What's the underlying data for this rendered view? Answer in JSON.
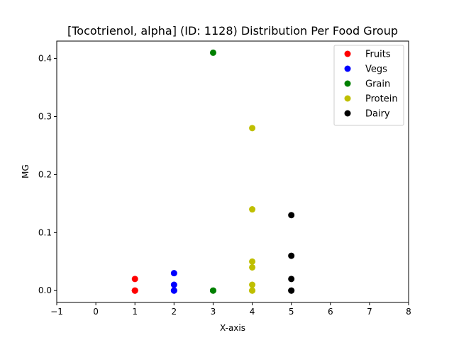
{
  "chart_data": {
    "type": "scatter",
    "title": "[Tocotrienol, alpha] (ID: 1128) Distribution Per Food Group",
    "xlabel": "X-axis",
    "ylabel": "MG",
    "xlim": [
      -1,
      8
    ],
    "ylim": [
      -0.0205,
      0.43
    ],
    "xticks": [
      -1,
      0,
      1,
      2,
      3,
      4,
      5,
      6,
      7,
      8
    ],
    "yticks": [
      0.0,
      0.1,
      0.2,
      0.3,
      0.4
    ],
    "xtick_labels": [
      "−1",
      "0",
      "1",
      "2",
      "3",
      "4",
      "5",
      "6",
      "7",
      "8"
    ],
    "ytick_labels": [
      "0.0",
      "0.1",
      "0.2",
      "0.3",
      "0.4"
    ],
    "grid": false,
    "legend_position": "top-right",
    "series": [
      {
        "name": "Fruits",
        "color": "#ff0000",
        "x": [
          1,
          1,
          1,
          1
        ],
        "y": [
          0.02,
          0.0,
          0.0,
          0.0
        ]
      },
      {
        "name": "Vegs",
        "color": "#0000ff",
        "x": [
          2,
          2,
          2,
          2
        ],
        "y": [
          0.03,
          0.01,
          0.0,
          0.0
        ]
      },
      {
        "name": "Grain",
        "color": "#008000",
        "x": [
          3,
          3,
          3
        ],
        "y": [
          0.41,
          0.0,
          0.0
        ]
      },
      {
        "name": "Protein",
        "color": "#bfbf00",
        "x": [
          4,
          4,
          4,
          4,
          4,
          4,
          4
        ],
        "y": [
          0.28,
          0.14,
          0.05,
          0.04,
          0.01,
          0.0,
          0.0
        ]
      },
      {
        "name": "Dairy",
        "color": "#000000",
        "x": [
          5,
          5,
          5,
          5,
          5
        ],
        "y": [
          0.13,
          0.06,
          0.02,
          0.0,
          0.0
        ]
      }
    ]
  }
}
